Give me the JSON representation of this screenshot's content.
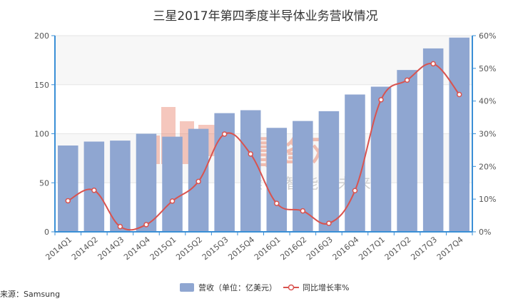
{
  "chart_data": {
    "type": "bar",
    "title": "三星2017年第四季度半导体业务营收情况",
    "categories": [
      "2014Q1",
      "2014Q2",
      "2014Q3",
      "2014Q4",
      "2015Q1",
      "2015Q2",
      "2015Q3",
      "2015Q4",
      "2016Q1",
      "2016Q2",
      "2016Q3",
      "2016Q4",
      "2017Q1",
      "2017Q2",
      "2017Q3",
      "2017Q4"
    ],
    "series": [
      {
        "name": "营收（单位：亿美元）",
        "kind": "bar",
        "axis": "left",
        "color": "#8fa6d1",
        "values": [
          88,
          92,
          93,
          100,
          97,
          105,
          121,
          124,
          106,
          113,
          123,
          140,
          148,
          165,
          187,
          198
        ]
      },
      {
        "name": "同比增长率%",
        "kind": "line",
        "axis": "right",
        "color": "#d9534f",
        "values": [
          9.5,
          12.7,
          1.6,
          2.2,
          9.4,
          15.4,
          29.9,
          23.8,
          8.7,
          6.4,
          2.6,
          12.6,
          40.4,
          46.4,
          51.4,
          42.0
        ]
      }
    ],
    "y_left": {
      "ylim": [
        0,
        200
      ],
      "ticks": [
        "0",
        "50",
        "100",
        "150",
        "200"
      ]
    },
    "y_right": {
      "ylim": [
        0,
        60
      ],
      "ticks": [
        "0%",
        "10%",
        "20%",
        "30%",
        "40%",
        "50%",
        "60%"
      ]
    },
    "legend_position": "bottom"
  },
  "source": "来源：Samsung",
  "watermark": {
    "brand": "雷锋网",
    "tagline": "读懂智能&未来"
  },
  "colors": {
    "bar": "#8fa6d1",
    "line": "#d9534f",
    "axis": "#3a8fd6"
  }
}
